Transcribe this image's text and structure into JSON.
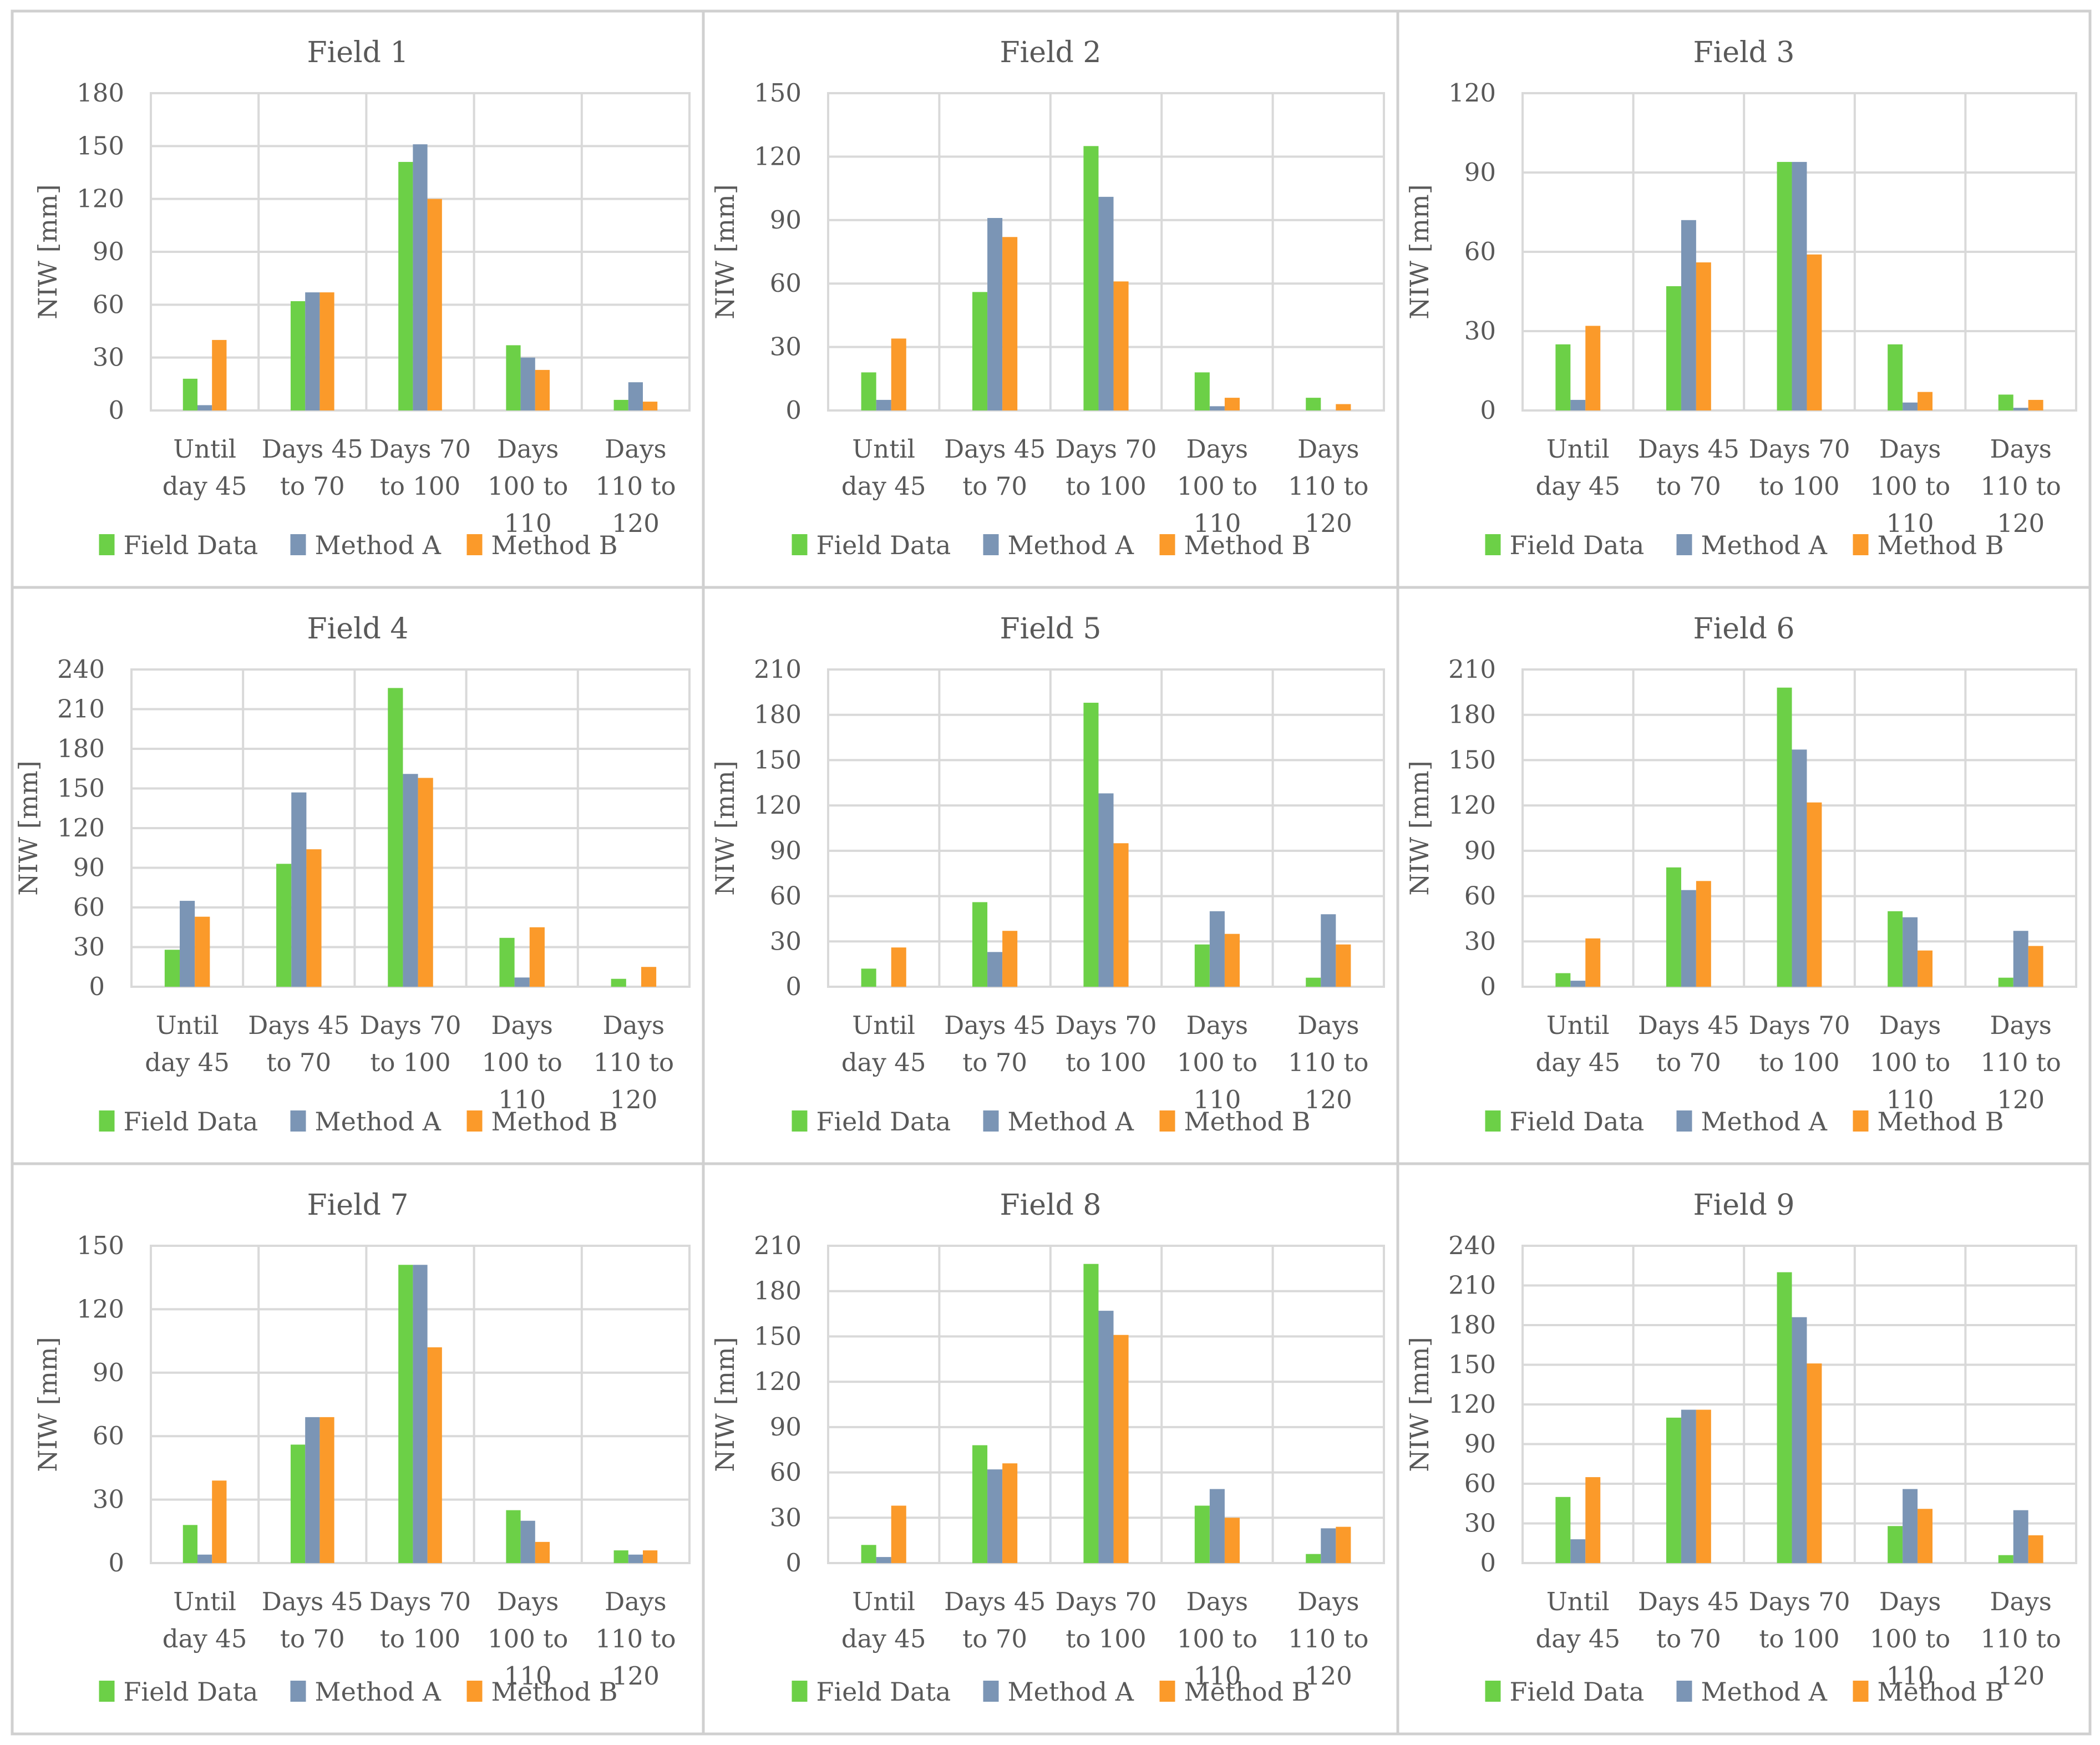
{
  "series_names": [
    "Field Data",
    "Method A",
    "Method B"
  ],
  "series_colors": [
    "#6cd047",
    "#7b95b5",
    "#fb9a2a"
  ],
  "chart_data": [
    {
      "type": "bar",
      "title": "Field 1",
      "ylabel": "NIW [mm]",
      "ylim": [
        0,
        180
      ],
      "yticks": [
        0,
        30,
        60,
        90,
        120,
        150,
        180
      ],
      "categories": [
        [
          "Until",
          "day 45"
        ],
        [
          "Days 45",
          "to 70"
        ],
        [
          "Days 70",
          "to 100"
        ],
        [
          "Days",
          "100 to",
          "110"
        ],
        [
          "Days",
          "110 to",
          "120"
        ]
      ],
      "series": [
        {
          "name": "Field Data",
          "values": [
            18,
            62,
            141,
            37,
            6
          ]
        },
        {
          "name": "Method A",
          "values": [
            3,
            67,
            151,
            30,
            16
          ]
        },
        {
          "name": "Method B",
          "values": [
            40,
            67,
            120,
            23,
            5
          ]
        }
      ]
    },
    {
      "type": "bar",
      "title": "Field 2",
      "ylabel": "NIW [mm]",
      "ylim": [
        0,
        150
      ],
      "yticks": [
        0,
        30,
        60,
        90,
        120,
        150
      ],
      "categories": [
        [
          "Until",
          "day 45"
        ],
        [
          "Days 45",
          "to 70"
        ],
        [
          "Days 70",
          "to 100"
        ],
        [
          "Days",
          "100 to",
          "110"
        ],
        [
          "Days",
          "110 to",
          "120"
        ]
      ],
      "series": [
        {
          "name": "Field Data",
          "values": [
            18,
            56,
            125,
            18,
            6
          ]
        },
        {
          "name": "Method A",
          "values": [
            5,
            91,
            101,
            2,
            0
          ]
        },
        {
          "name": "Method B",
          "values": [
            34,
            82,
            61,
            6,
            3
          ]
        }
      ]
    },
    {
      "type": "bar",
      "title": "Field 3",
      "ylabel": "NIW [mm]",
      "ylim": [
        0,
        120
      ],
      "yticks": [
        0,
        30,
        60,
        90,
        120
      ],
      "categories": [
        [
          "Until",
          "day 45"
        ],
        [
          "Days 45",
          "to 70"
        ],
        [
          "Days 70",
          "to 100"
        ],
        [
          "Days",
          "100 to",
          "110"
        ],
        [
          "Days",
          "110 to",
          "120"
        ]
      ],
      "series": [
        {
          "name": "Field Data",
          "values": [
            25,
            47,
            94,
            25,
            6
          ]
        },
        {
          "name": "Method A",
          "values": [
            4,
            72,
            94,
            3,
            1
          ]
        },
        {
          "name": "Method B",
          "values": [
            32,
            56,
            59,
            7,
            4
          ]
        }
      ]
    },
    {
      "type": "bar",
      "title": "Field 4",
      "ylabel": "NIW [mm]",
      "ylim": [
        0,
        240
      ],
      "yticks": [
        0,
        30,
        60,
        90,
        120,
        150,
        180,
        210,
        240
      ],
      "categories": [
        [
          "Until",
          "day 45"
        ],
        [
          "Days 45",
          "to 70"
        ],
        [
          "Days 70",
          "to 100"
        ],
        [
          "Days",
          "100 to",
          "110"
        ],
        [
          "Days",
          "110 to",
          "120"
        ]
      ],
      "series": [
        {
          "name": "Field Data",
          "values": [
            28,
            93,
            226,
            37,
            6
          ]
        },
        {
          "name": "Method A",
          "values": [
            65,
            147,
            161,
            7,
            0
          ]
        },
        {
          "name": "Method B",
          "values": [
            53,
            104,
            158,
            45,
            15
          ]
        }
      ]
    },
    {
      "type": "bar",
      "title": "Field 5",
      "ylabel": "NIW [mm]",
      "ylim": [
        0,
        210
      ],
      "yticks": [
        0,
        30,
        60,
        90,
        120,
        150,
        180,
        210
      ],
      "categories": [
        [
          "Until",
          "day 45"
        ],
        [
          "Days 45",
          "to 70"
        ],
        [
          "Days 70",
          "to 100"
        ],
        [
          "Days",
          "100 to",
          "110"
        ],
        [
          "Days",
          "110 to",
          "120"
        ]
      ],
      "series": [
        {
          "name": "Field Data",
          "values": [
            12,
            56,
            188,
            28,
            6
          ]
        },
        {
          "name": "Method A",
          "values": [
            0,
            23,
            128,
            50,
            48
          ]
        },
        {
          "name": "Method B",
          "values": [
            26,
            37,
            95,
            35,
            28
          ]
        }
      ]
    },
    {
      "type": "bar",
      "title": "Field 6",
      "ylabel": "NIW [mm]",
      "ylim": [
        0,
        210
      ],
      "yticks": [
        0,
        30,
        60,
        90,
        120,
        150,
        180,
        210
      ],
      "categories": [
        [
          "Until",
          "day 45"
        ],
        [
          "Days 45",
          "to 70"
        ],
        [
          "Days 70",
          "to 100"
        ],
        [
          "Days",
          "100 to",
          "110"
        ],
        [
          "Days",
          "110 to",
          "120"
        ]
      ],
      "series": [
        {
          "name": "Field Data",
          "values": [
            9,
            79,
            198,
            50,
            6
          ]
        },
        {
          "name": "Method A",
          "values": [
            4,
            64,
            157,
            46,
            37
          ]
        },
        {
          "name": "Method B",
          "values": [
            32,
            70,
            122,
            24,
            27
          ]
        }
      ]
    },
    {
      "type": "bar",
      "title": "Field 7",
      "ylabel": "NIW [mm]",
      "ylim": [
        0,
        150
      ],
      "yticks": [
        0,
        30,
        60,
        90,
        120,
        150
      ],
      "categories": [
        [
          "Until",
          "day 45"
        ],
        [
          "Days 45",
          "to 70"
        ],
        [
          "Days 70",
          "to 100"
        ],
        [
          "Days",
          "100 to",
          "110"
        ],
        [
          "Days",
          "110 to",
          "120"
        ]
      ],
      "series": [
        {
          "name": "Field Data",
          "values": [
            18,
            56,
            141,
            25,
            6
          ]
        },
        {
          "name": "Method A",
          "values": [
            4,
            69,
            141,
            20,
            4
          ]
        },
        {
          "name": "Method B",
          "values": [
            39,
            69,
            102,
            10,
            6
          ]
        }
      ]
    },
    {
      "type": "bar",
      "title": "Field 8",
      "ylabel": "NIW [mm]",
      "ylim": [
        0,
        210
      ],
      "yticks": [
        0,
        30,
        60,
        90,
        120,
        150,
        180,
        210
      ],
      "categories": [
        [
          "Until",
          "day 45"
        ],
        [
          "Days 45",
          "to 70"
        ],
        [
          "Days 70",
          "to 100"
        ],
        [
          "Days",
          "100 to",
          "110"
        ],
        [
          "Days",
          "110 to",
          "120"
        ]
      ],
      "series": [
        {
          "name": "Field Data",
          "values": [
            12,
            78,
            198,
            38,
            6
          ]
        },
        {
          "name": "Method A",
          "values": [
            4,
            62,
            167,
            49,
            23
          ]
        },
        {
          "name": "Method B",
          "values": [
            38,
            66,
            151,
            30,
            24
          ]
        }
      ]
    },
    {
      "type": "bar",
      "title": "Field 9",
      "ylabel": "NIW [mm]",
      "ylim": [
        0,
        240
      ],
      "yticks": [
        0,
        30,
        60,
        90,
        120,
        150,
        180,
        210,
        240
      ],
      "categories": [
        [
          "Until",
          "day 45"
        ],
        [
          "Days 45",
          "to 70"
        ],
        [
          "Days 70",
          "to 100"
        ],
        [
          "Days",
          "100 to",
          "110"
        ],
        [
          "Days",
          "110 to",
          "120"
        ]
      ],
      "series": [
        {
          "name": "Field Data",
          "values": [
            50,
            110,
            220,
            28,
            6
          ]
        },
        {
          "name": "Method A",
          "values": [
            18,
            116,
            186,
            56,
            40
          ]
        },
        {
          "name": "Method B",
          "values": [
            65,
            116,
            151,
            41,
            21
          ]
        }
      ]
    }
  ]
}
